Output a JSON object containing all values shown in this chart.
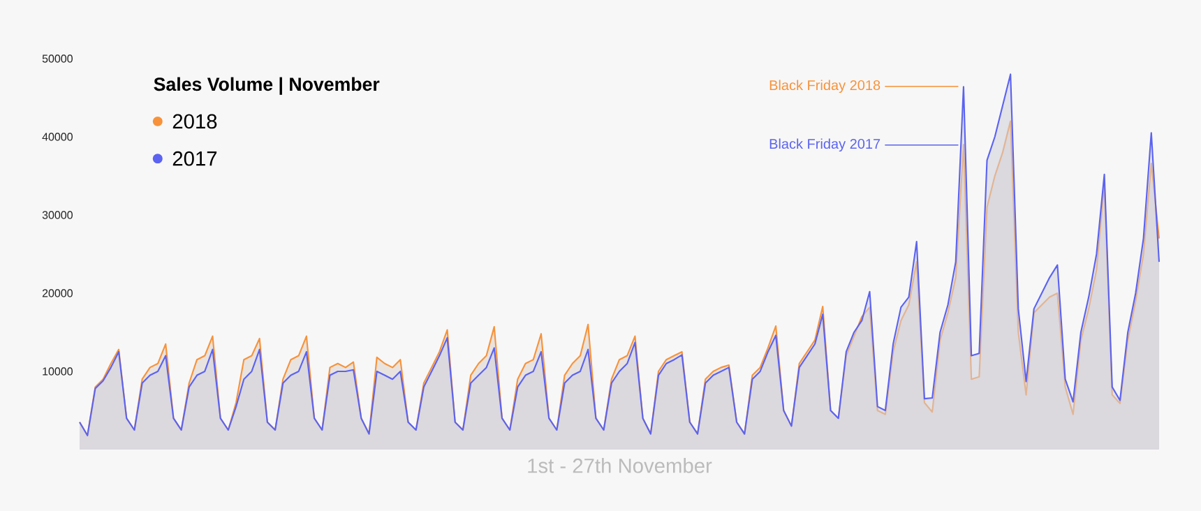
{
  "chart_data": {
    "type": "area",
    "legend_title": "Sales Volume | November",
    "xlabel": "1st - 27th November",
    "legend": "top left",
    "categories": [
      null,
      null,
      null,
      null,
      null,
      null,
      null,
      null,
      null,
      null,
      null,
      null,
      null,
      null,
      null,
      null,
      null,
      null,
      null,
      null,
      null,
      null,
      null,
      null,
      null,
      null,
      null,
      null,
      null,
      null,
      null,
      null,
      null,
      null,
      null,
      null,
      null,
      null,
      null,
      null,
      null,
      null,
      null,
      null,
      null,
      null,
      null,
      null,
      null,
      null,
      null,
      null,
      null,
      null,
      null,
      null,
      null,
      null,
      null,
      null,
      null,
      null,
      null,
      null,
      null,
      null,
      null,
      null,
      null,
      null,
      null,
      null,
      null,
      null,
      null,
      null,
      null,
      null,
      null,
      null,
      null,
      null,
      null,
      null,
      null,
      null,
      null,
      null,
      null,
      null,
      null,
      null,
      null,
      null,
      null,
      null,
      null,
      null,
      null,
      null,
      null,
      null,
      null,
      null,
      null,
      null,
      null,
      null,
      null,
      null,
      null,
      null,
      null,
      null,
      null,
      null,
      null,
      null,
      null,
      null,
      null,
      null,
      null,
      null,
      null,
      null,
      null,
      null,
      null,
      null,
      null,
      null,
      null,
      null,
      null,
      null,
      null,
      null,
      null
    ],
    "series": [
      {
        "name": "2018",
        "color": "#f7923a",
        "values": [
          3500,
          1800,
          8000,
          9000,
          11000,
          12800,
          4000,
          2500,
          9000,
          10500,
          11000,
          13500,
          4000,
          2500,
          8500,
          11500,
          12000,
          14500,
          4000,
          2500,
          6000,
          11500,
          12000,
          14200,
          3500,
          2500,
          9000,
          11500,
          12000,
          14500,
          4000,
          2500,
          10500,
          11000,
          10500,
          11200,
          4000,
          2000,
          11800,
          11000,
          10500,
          11500,
          3500,
          2500,
          8500,
          10500,
          12500,
          15300,
          3500,
          2500,
          9500,
          11000,
          12000,
          15700,
          4000,
          2500,
          9000,
          11000,
          11500,
          14800,
          4000,
          2500,
          9500,
          11000,
          12000,
          16000,
          4000,
          2500,
          9000,
          11500,
          12000,
          14500,
          4000,
          2000,
          10000,
          11500,
          12000,
          12500,
          3500,
          2000,
          9000,
          10000,
          10500,
          10800,
          3500,
          2000,
          9500,
          10500,
          13000,
          15800,
          5000,
          3000,
          11000,
          12500,
          14000,
          18300,
          5000,
          4000,
          12000,
          14500,
          17000,
          18200,
          5000,
          4500,
          12500,
          16500,
          18500,
          24000,
          6000,
          4800,
          14000,
          17500,
          22000,
          39000,
          9000,
          9300,
          31000,
          35000,
          38000,
          42000,
          15000,
          7000,
          17500,
          18500,
          19500,
          20000,
          8000,
          4500,
          14000,
          18000,
          23000,
          34000,
          7000,
          5900,
          14000,
          19000,
          25000,
          36600,
          27000
        ]
      },
      {
        "name": "2017",
        "color": "#5b63f0",
        "values": [
          3500,
          1800,
          7800,
          8800,
          10500,
          12500,
          4000,
          2500,
          8500,
          9500,
          10000,
          12000,
          4000,
          2500,
          8000,
          9500,
          10000,
          12800,
          4000,
          2500,
          5500,
          9000,
          10000,
          12800,
          3500,
          2500,
          8500,
          9500,
          10000,
          12500,
          4000,
          2500,
          9500,
          10000,
          10000,
          10200,
          4000,
          2000,
          10000,
          9500,
          9000,
          10000,
          3500,
          2500,
          8000,
          10000,
          12000,
          14300,
          3500,
          2500,
          8500,
          9500,
          10500,
          13000,
          4000,
          2500,
          8000,
          9500,
          10000,
          12500,
          4000,
          2500,
          8500,
          9500,
          10000,
          12800,
          4000,
          2500,
          8500,
          10000,
          11000,
          13700,
          4000,
          2000,
          9500,
          11000,
          11500,
          12100,
          3500,
          2000,
          8500,
          9500,
          10000,
          10500,
          3500,
          2000,
          9000,
          10000,
          12500,
          14600,
          5000,
          3000,
          10500,
          12000,
          13500,
          17300,
          5000,
          4000,
          12500,
          15000,
          16500,
          20200,
          5500,
          5000,
          13500,
          18200,
          19500,
          26600,
          6500,
          6600,
          15000,
          18500,
          24000,
          46400,
          12000,
          12300,
          37000,
          40000,
          44000,
          48000,
          18000,
          8700,
          18000,
          20000,
          22000,
          23600,
          9000,
          6100,
          15000,
          19500,
          25000,
          35200,
          8000,
          6300,
          15000,
          20000,
          27000,
          40500,
          24000
        ]
      }
    ],
    "ylim": [
      0,
      50000
    ],
    "yticks": [
      10000,
      20000,
      30000,
      40000,
      50000
    ],
    "annotations": [
      "Black Friday 2018",
      "Black Friday 2017"
    ]
  }
}
